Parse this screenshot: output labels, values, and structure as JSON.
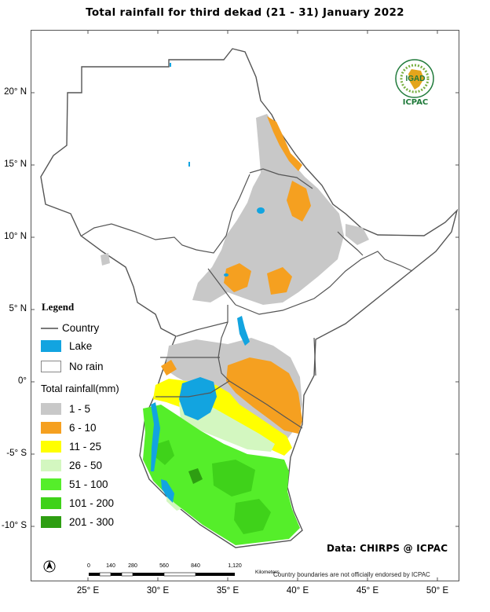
{
  "title": "Total rainfall  for   third  dekad (21 - 31)  January 2022",
  "latitude_ticks": [
    "20° N",
    "15° N",
    "10° N",
    "5° N",
    "0°",
    "-5° S",
    "-10° S"
  ],
  "longitude_ticks": [
    "25° E",
    "30° E",
    "35° E",
    "40° E",
    "45° E",
    "50° E"
  ],
  "legend": {
    "title": "Legend",
    "country_label": "Country",
    "lake_label": "Lake",
    "no_rain_label": "No rain",
    "rainfall_title": "Total rainfall(mm)",
    "classes": [
      {
        "label": "1 - 5",
        "color": "#c8c8c8"
      },
      {
        "label": "6 - 10",
        "color": "#f5a020"
      },
      {
        "label": "11 - 25",
        "color": "#ffff00"
      },
      {
        "label": "26 - 50",
        "color": "#d3f7c0"
      },
      {
        "label": "51 - 100",
        "color": "#55ee2a"
      },
      {
        "label": "101 - 200",
        "color": "#3fd21a"
      },
      {
        "label": "201 - 300",
        "color": "#2e9e12"
      }
    ],
    "lake_color": "#12a4e0",
    "no_rain_color": "#ffffff"
  },
  "logo": {
    "badge_text": "IGAD",
    "org_text": "ICPAC"
  },
  "credit": "Data: CHIRPS @ ICPAC",
  "scale_bar": {
    "ticks": [
      "0",
      "140",
      "280",
      "560",
      "840",
      "1,120"
    ],
    "unit": "Kilometers"
  },
  "disclaimer": "Country boundaries are not officially endorsed by ICPAC"
}
